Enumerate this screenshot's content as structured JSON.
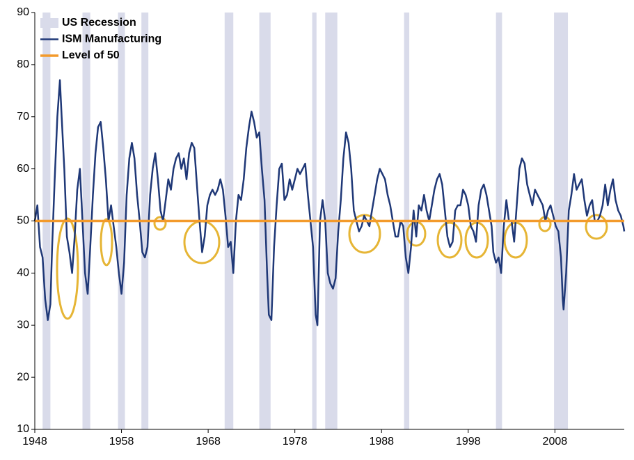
{
  "chart_data": {
    "type": "line",
    "xlim": [
      1948,
      2016
    ],
    "xticks": [
      1948,
      1958,
      1968,
      1978,
      1988,
      1998,
      2008
    ],
    "ylim": [
      10,
      90
    ],
    "yticks": [
      10,
      20,
      30,
      40,
      50,
      60,
      70,
      80,
      90
    ],
    "grid": false,
    "legend": "upper left",
    "series": [
      {
        "name": "US Recession",
        "color": "#d9dbea",
        "ranges": [
          [
            1948.9,
            1949.8
          ],
          [
            1953.5,
            1954.4
          ],
          [
            1957.6,
            1958.4
          ],
          [
            1960.3,
            1961.1
          ],
          [
            1969.9,
            1970.9
          ],
          [
            1973.9,
            1975.2
          ],
          [
            1980.0,
            1980.5
          ],
          [
            1981.5,
            1982.9
          ],
          [
            1990.6,
            1991.2
          ],
          [
            2001.2,
            2001.9
          ],
          [
            2007.9,
            2009.5
          ]
        ]
      },
      {
        "name": "ISM Manufacturing",
        "color": "#1f3877",
        "x": [
          1948.0,
          1948.3,
          1948.6,
          1948.9,
          1949.2,
          1949.5,
          1949.8,
          1950.0,
          1950.3,
          1950.6,
          1950.9,
          1951.1,
          1951.4,
          1951.7,
          1952.0,
          1952.3,
          1952.6,
          1952.9,
          1953.2,
          1953.5,
          1953.8,
          1954.1,
          1954.4,
          1954.7,
          1955.0,
          1955.3,
          1955.6,
          1955.9,
          1956.2,
          1956.5,
          1956.8,
          1957.1,
          1957.4,
          1957.7,
          1958.0,
          1958.3,
          1958.6,
          1958.9,
          1959.2,
          1959.5,
          1959.8,
          1960.1,
          1960.4,
          1960.7,
          1961.0,
          1961.3,
          1961.6,
          1961.9,
          1962.2,
          1962.5,
          1962.8,
          1963.1,
          1963.4,
          1963.7,
          1964.0,
          1964.3,
          1964.6,
          1964.9,
          1965.2,
          1965.5,
          1965.8,
          1966.1,
          1966.4,
          1966.7,
          1967.0,
          1967.3,
          1967.6,
          1967.9,
          1968.2,
          1968.5,
          1968.8,
          1969.1,
          1969.4,
          1969.7,
          1970.0,
          1970.3,
          1970.6,
          1970.9,
          1971.2,
          1971.5,
          1971.8,
          1972.1,
          1972.4,
          1972.7,
          1973.0,
          1973.3,
          1973.6,
          1973.9,
          1974.2,
          1974.5,
          1974.8,
          1975.0,
          1975.3,
          1975.6,
          1975.9,
          1976.2,
          1976.5,
          1976.8,
          1977.1,
          1977.4,
          1977.7,
          1978.0,
          1978.3,
          1978.6,
          1978.9,
          1979.2,
          1979.5,
          1979.8,
          1980.1,
          1980.4,
          1980.6,
          1980.9,
          1981.2,
          1981.5,
          1981.8,
          1982.1,
          1982.4,
          1982.7,
          1983.0,
          1983.3,
          1983.6,
          1983.9,
          1984.2,
          1984.5,
          1984.8,
          1985.1,
          1985.4,
          1985.7,
          1986.0,
          1986.3,
          1986.6,
          1986.9,
          1987.2,
          1987.5,
          1987.8,
          1988.1,
          1988.4,
          1988.7,
          1989.0,
          1989.3,
          1989.6,
          1989.9,
          1990.2,
          1990.5,
          1990.8,
          1991.1,
          1991.4,
          1991.7,
          1992.0,
          1992.3,
          1992.6,
          1992.9,
          1993.2,
          1993.5,
          1993.8,
          1994.1,
          1994.4,
          1994.7,
          1995.0,
          1995.3,
          1995.6,
          1995.9,
          1996.2,
          1996.5,
          1996.8,
          1997.1,
          1997.4,
          1997.7,
          1998.0,
          1998.3,
          1998.6,
          1998.9,
          1999.2,
          1999.5,
          1999.8,
          2000.1,
          2000.4,
          2000.7,
          2000.9,
          2001.2,
          2001.5,
          2001.8,
          2002.1,
          2002.4,
          2002.7,
          2003.0,
          2003.3,
          2003.6,
          2003.9,
          2004.2,
          2004.5,
          2004.8,
          2005.1,
          2005.4,
          2005.7,
          2006.0,
          2006.3,
          2006.6,
          2006.9,
          2007.2,
          2007.5,
          2007.8,
          2008.1,
          2008.4,
          2008.7,
          2008.9,
          2009.0,
          2009.3,
          2009.6,
          2009.9,
          2010.2,
          2010.5,
          2010.8,
          2011.1,
          2011.4,
          2011.7,
          2012.0,
          2012.3,
          2012.6,
          2012.9,
          2013.2,
          2013.5,
          2013.8,
          2014.1,
          2014.4,
          2014.7,
          2015.0,
          2015.3,
          2015.6,
          2015.9,
          2016.0
        ],
        "values": [
          50,
          53,
          45,
          43,
          35,
          31,
          34,
          45,
          58,
          70,
          77,
          70,
          60,
          47,
          44,
          40,
          47,
          56,
          60,
          50,
          40,
          36,
          45,
          55,
          63,
          68,
          69,
          64,
          58,
          50,
          53,
          49,
          45,
          40,
          36,
          42,
          55,
          62,
          65,
          62,
          55,
          50,
          44,
          43,
          45,
          55,
          60,
          63,
          58,
          52,
          50,
          54,
          58,
          56,
          60,
          62,
          63,
          60,
          62,
          58,
          63,
          65,
          64,
          57,
          50,
          44,
          47,
          53,
          55,
          56,
          55,
          56,
          58,
          56,
          51,
          45,
          46,
          40,
          50,
          55,
          54,
          58,
          64,
          68,
          71,
          69,
          66,
          67,
          60,
          54,
          40,
          32,
          31,
          45,
          53,
          60,
          61,
          54,
          55,
          58,
          56,
          58,
          60,
          59,
          60,
          61,
          55,
          50,
          45,
          32,
          30,
          50,
          54,
          50,
          40,
          38,
          37,
          39,
          48,
          54,
          62,
          67,
          65,
          60,
          52,
          50,
          48,
          49,
          51,
          50,
          49,
          52,
          55,
          58,
          60,
          59,
          58,
          55,
          53,
          50,
          47,
          47,
          50,
          49,
          43,
          40,
          45,
          52,
          47,
          53,
          52,
          55,
          52,
          50,
          53,
          56,
          58,
          59,
          57,
          52,
          47,
          45,
          46,
          52,
          53,
          53,
          56,
          55,
          53,
          49,
          48,
          46,
          53,
          56,
          57,
          55,
          52,
          49,
          44,
          42,
          43,
          40,
          49,
          54,
          50,
          50,
          46,
          53,
          60,
          62,
          61,
          57,
          55,
          53,
          56,
          55,
          54,
          53,
          50,
          52,
          53,
          51,
          49,
          48,
          43,
          35,
          33,
          40,
          52,
          55,
          59,
          56,
          57,
          58,
          54,
          51,
          53,
          54,
          50,
          50,
          51,
          53,
          57,
          53,
          56,
          58,
          54,
          52,
          51,
          49,
          48
        ]
      },
      {
        "name": "Level of 50",
        "color": "#f39a2b",
        "value": 50
      }
    ]
  }
}
